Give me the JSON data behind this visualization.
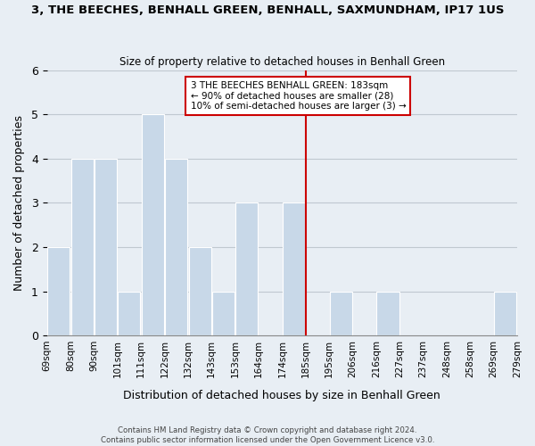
{
  "title": "3, THE BEECHES, BENHALL GREEN, BENHALL, SAXMUNDHAM, IP17 1US",
  "subtitle": "Size of property relative to detached houses in Benhall Green",
  "xlabel": "Distribution of detached houses by size in Benhall Green",
  "ylabel": "Number of detached properties",
  "bin_labels": [
    "69sqm",
    "80sqm",
    "90sqm",
    "101sqm",
    "111sqm",
    "122sqm",
    "132sqm",
    "143sqm",
    "153sqm",
    "164sqm",
    "174sqm",
    "185sqm",
    "195sqm",
    "206sqm",
    "216sqm",
    "227sqm",
    "237sqm",
    "248sqm",
    "258sqm",
    "269sqm"
  ],
  "bar_heights": [
    2,
    4,
    4,
    1,
    5,
    4,
    2,
    1,
    3,
    0,
    3,
    0,
    1,
    0,
    1,
    0,
    0,
    0,
    0,
    1
  ],
  "bar_color": "#c8d8e8",
  "bar_edge_color": "#ffffff",
  "grid_color": "#c0c8d0",
  "red_line_label_index": 11,
  "red_line_color": "#cc0000",
  "annotation_text": "3 THE BEECHES BENHALL GREEN: 183sqm\n← 90% of detached houses are smaller (28)\n10% of semi-detached houses are larger (3) →",
  "extra_label": "279sqm",
  "ylim": [
    0,
    6
  ],
  "yticks": [
    0,
    1,
    2,
    3,
    4,
    5,
    6
  ],
  "footer_text": "Contains HM Land Registry data © Crown copyright and database right 2024.\nContains public sector information licensed under the Open Government Licence v3.0.",
  "background_color": "#e8eef4",
  "plot_background_color": "#e8eef4"
}
